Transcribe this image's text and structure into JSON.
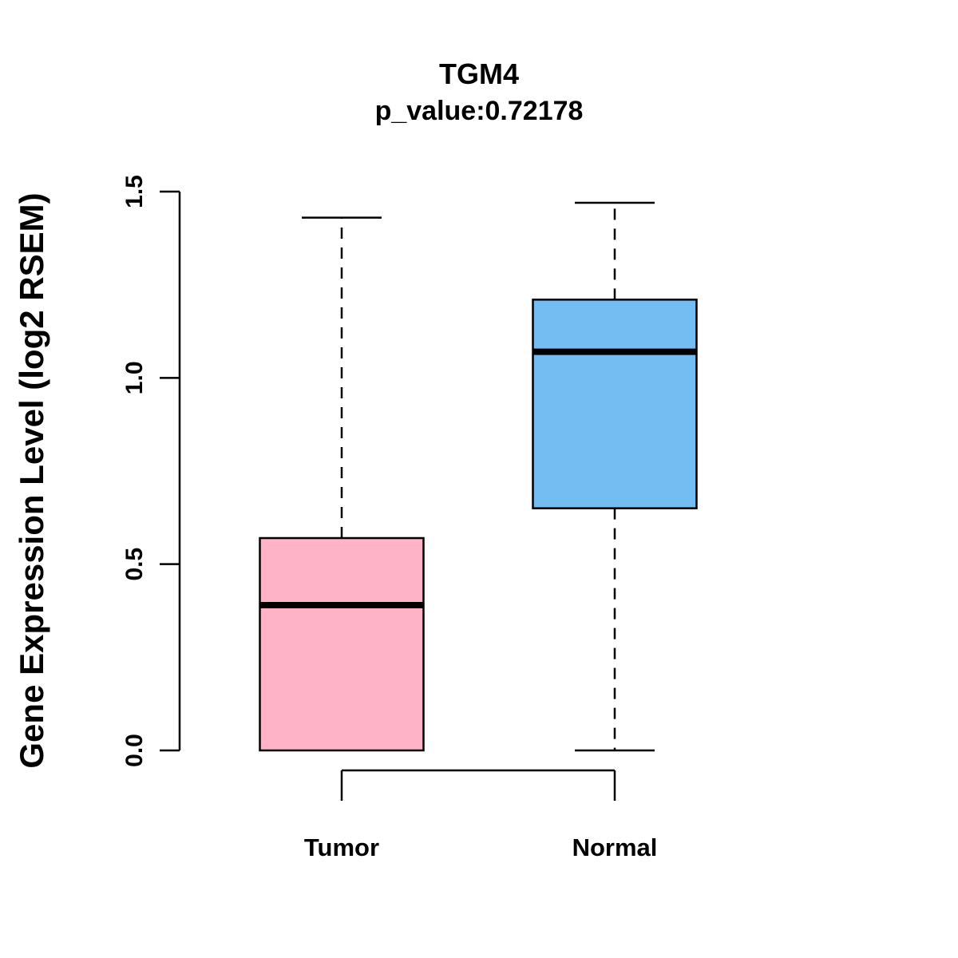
{
  "chart_data": {
    "type": "boxplot",
    "title": "TGM4",
    "subtitle": "p_value:0.72178",
    "ylabel": "Gene Expression Level (log2 RSEM)",
    "xlabel": "",
    "categories": [
      "Tumor",
      "Normal"
    ],
    "series": [
      {
        "name": "Tumor",
        "color": "#FFB3C6",
        "min": 0.0,
        "q1": 0.0,
        "median": 0.39,
        "q3": 0.57,
        "max": 1.43
      },
      {
        "name": "Normal",
        "color": "#74BDF2",
        "min": 0.0,
        "q1": 0.65,
        "median": 1.07,
        "q3": 1.21,
        "max": 1.47
      }
    ],
    "yticks": [
      0.0,
      0.5,
      1.0,
      1.5
    ],
    "ylim": [
      0.0,
      1.5
    ],
    "grid": "off",
    "legend": "none",
    "axis_color": "#000000",
    "whisker_style": "dashed"
  }
}
